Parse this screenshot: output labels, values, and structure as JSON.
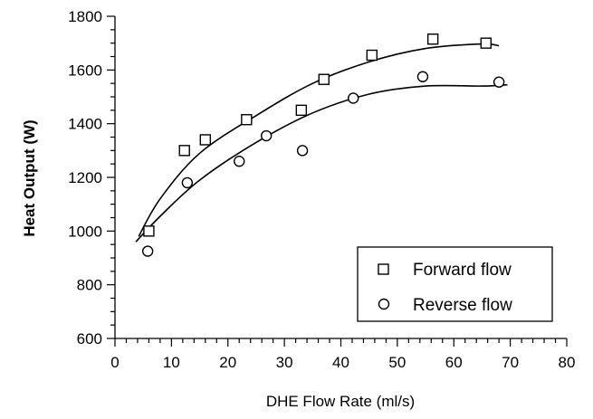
{
  "chart_data": {
    "type": "scatter",
    "title": "",
    "xlabel": "DHE Flow Rate (ml/s)",
    "ylabel": "Heat Output (W)",
    "xlim": [
      0,
      80
    ],
    "ylim": [
      600,
      1800
    ],
    "x_major_ticks": [
      0,
      10,
      20,
      30,
      40,
      50,
      60,
      70,
      80
    ],
    "y_major_ticks": [
      600,
      800,
      1000,
      1200,
      1400,
      1600,
      1800
    ],
    "x_tick_labels": [
      "0",
      "10",
      "20",
      "30",
      "40",
      "50",
      "60",
      "70",
      "80"
    ],
    "y_tick_labels": [
      "600",
      "800",
      "1000",
      "1200",
      "1400",
      "1600",
      "1800"
    ],
    "grid": false,
    "legend_position": "bottom-right",
    "series": [
      {
        "name": "Forward flow",
        "marker": "square",
        "points": [
          [
            6,
            1000
          ],
          [
            12.3,
            1300
          ],
          [
            16,
            1340
          ],
          [
            23.3,
            1415
          ],
          [
            33,
            1450
          ],
          [
            37,
            1565
          ],
          [
            45.5,
            1655
          ],
          [
            56.3,
            1715
          ],
          [
            65.7,
            1700
          ]
        ],
        "fit": [
          [
            4.2,
            980
          ],
          [
            8,
            1120
          ],
          [
            15,
            1290
          ],
          [
            25,
            1430
          ],
          [
            35,
            1550
          ],
          [
            45,
            1630
          ],
          [
            55,
            1680
          ],
          [
            65,
            1697
          ],
          [
            68,
            1690
          ]
        ]
      },
      {
        "name": "Reverse flow",
        "marker": "circle",
        "points": [
          [
            5.8,
            925
          ],
          [
            12.8,
            1180
          ],
          [
            22,
            1260
          ],
          [
            26.8,
            1355
          ],
          [
            33.2,
            1300
          ],
          [
            42.2,
            1495
          ],
          [
            54.5,
            1575
          ],
          [
            68,
            1555
          ]
        ],
        "fit": [
          [
            3.7,
            960
          ],
          [
            8,
            1055
          ],
          [
            15,
            1190
          ],
          [
            25,
            1330
          ],
          [
            35,
            1440
          ],
          [
            45,
            1510
          ],
          [
            55,
            1540
          ],
          [
            65,
            1540
          ],
          [
            69.5,
            1545
          ]
        ]
      }
    ]
  }
}
